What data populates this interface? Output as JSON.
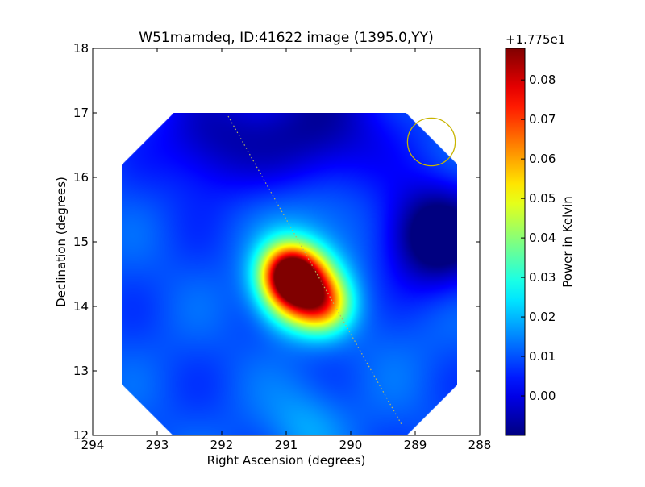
{
  "chart_data": {
    "type": "heatmap",
    "title": "W51mamdeq, ID:41622 image (1395.0,YY)",
    "xlabel": "Right Ascension (degrees)",
    "ylabel": "Declination (degrees)",
    "xlim": [
      294,
      288
    ],
    "ylim": [
      12,
      18
    ],
    "x_ticks": [
      "294",
      "293",
      "292",
      "291",
      "290",
      "289",
      "288"
    ],
    "y_ticks": [
      "12",
      "13",
      "14",
      "15",
      "16",
      "17",
      "18"
    ],
    "grid": false,
    "colormap": "jet",
    "colorbar": {
      "label": "Power in Kelvin",
      "offset_text": "+1.775e1",
      "ticks": [
        "0.00",
        "0.01",
        "0.02",
        "0.03",
        "0.04",
        "0.05",
        "0.06",
        "0.07",
        "0.08"
      ],
      "range": [
        -0.01,
        0.088
      ]
    },
    "image_extent": {
      "ra": [
        293.55,
        288.35
      ],
      "dec": [
        12.0,
        17.0
      ],
      "corner_clip_degrees": 0.8
    },
    "peak": {
      "ra": 290.8,
      "dec": 14.3,
      "value": 0.088
    },
    "features": [
      {
        "ra": 290.8,
        "dec": 14.3,
        "value": 0.088
      },
      {
        "ra": 291.0,
        "dec": 14.6,
        "value": 0.045
      },
      {
        "ra": 290.4,
        "dec": 14.0,
        "value": 0.04
      },
      {
        "ra": 290.9,
        "dec": 14.45,
        "value": 0.03
      },
      {
        "ra": 290.5,
        "dec": 15.3,
        "value": 0.018
      },
      {
        "ra": 292.2,
        "dec": 14.2,
        "value": 0.01
      },
      {
        "ra": 290.7,
        "dec": 12.2,
        "value": 0.018
      },
      {
        "ra": 289.3,
        "dec": 13.6,
        "value": 0.012
      },
      {
        "ra": 288.7,
        "dec": 15.1,
        "value": -0.018
      },
      {
        "ra": 290.5,
        "dec": 16.7,
        "value": -0.008
      },
      {
        "ra": 292.2,
        "dec": 16.6,
        "value": -0.005
      }
    ],
    "dotted_line": {
      "start": [
        291.9,
        16.95
      ],
      "end": [
        289.2,
        12.15
      ]
    },
    "beam_circle": {
      "ra": 288.75,
      "dec": 16.55,
      "radius_deg": 0.37
    }
  }
}
